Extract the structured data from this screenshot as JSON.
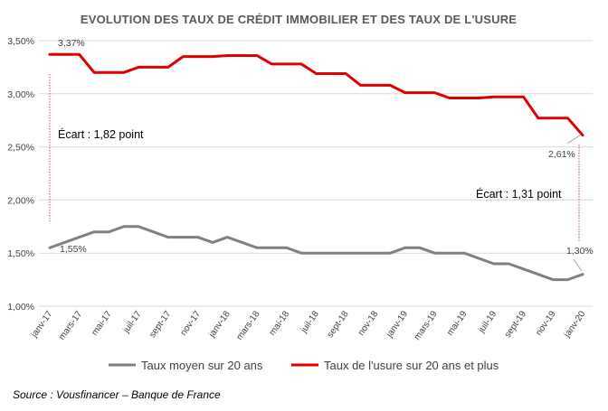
{
  "chart_data": {
    "type": "line",
    "title": "Evolution des taux de crédit immobilier et des taux de l'usure",
    "xlabel": "",
    "ylabel": "",
    "ylim": [
      1.0,
      3.5
    ],
    "yticks": [
      "1,00%",
      "1,50%",
      "2,00%",
      "2,50%",
      "3,00%",
      "3,50%"
    ],
    "ytick_values": [
      1.0,
      1.5,
      2.0,
      2.5,
      3.0,
      3.5
    ],
    "x_ticks": [
      "janv-17",
      "mars-17",
      "mai-17",
      "juil-17",
      "sept-17",
      "nov-17",
      "janv-18",
      "mars-18",
      "mai-18",
      "juil-18",
      "sept-18",
      "nov-18",
      "janv-19",
      "mars-19",
      "mai-19",
      "juil-19",
      "sept-19",
      "nov-19",
      "janv-20"
    ],
    "x": [
      "janv-17",
      "févr-17",
      "mars-17",
      "avr-17",
      "mai-17",
      "juin-17",
      "juil-17",
      "août-17",
      "sept-17",
      "oct-17",
      "nov-17",
      "déc-17",
      "janv-18",
      "févr-18",
      "mars-18",
      "avr-18",
      "mai-18",
      "juin-18",
      "juil-18",
      "août-18",
      "sept-18",
      "oct-18",
      "nov-18",
      "déc-18",
      "janv-19",
      "févr-19",
      "mars-19",
      "avr-19",
      "mai-19",
      "juin-19",
      "juil-19",
      "août-19",
      "sept-19",
      "oct-19",
      "nov-19",
      "déc-19",
      "janv-20"
    ],
    "series": [
      {
        "name": "Taux moyen sur 20 ans",
        "color": "#808080",
        "values": [
          1.55,
          1.6,
          1.65,
          1.7,
          1.7,
          1.75,
          1.75,
          1.7,
          1.65,
          1.65,
          1.65,
          1.6,
          1.65,
          1.6,
          1.55,
          1.55,
          1.55,
          1.5,
          1.5,
          1.5,
          1.5,
          1.5,
          1.5,
          1.5,
          1.55,
          1.55,
          1.5,
          1.5,
          1.5,
          1.45,
          1.4,
          1.4,
          1.35,
          1.3,
          1.25,
          1.25,
          1.3
        ]
      },
      {
        "name": "Taux de l'usure sur 20 ans et plus",
        "color": "#e00000",
        "values": [
          3.37,
          3.37,
          3.37,
          3.2,
          3.2,
          3.2,
          3.25,
          3.25,
          3.25,
          3.35,
          3.35,
          3.35,
          3.36,
          3.36,
          3.36,
          3.28,
          3.28,
          3.28,
          3.19,
          3.19,
          3.19,
          3.08,
          3.08,
          3.08,
          3.01,
          3.01,
          3.01,
          2.96,
          2.96,
          2.96,
          2.97,
          2.97,
          2.97,
          2.77,
          2.77,
          2.77,
          2.61
        ]
      }
    ],
    "data_labels": {
      "usure_start": "3,37%",
      "moyen_start": "1,55%",
      "usure_end": "2,61%",
      "moyen_end": "1,30%"
    },
    "annotations": {
      "ecart_start": "Écart : 1,82 point",
      "ecart_end": "Écart : 1,31 point"
    },
    "grid": true,
    "legend_position": "bottom"
  },
  "source": "Source : Vousfinancer – Banque de France"
}
